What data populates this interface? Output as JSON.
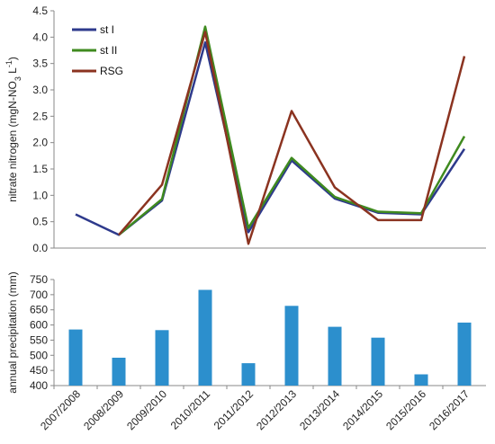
{
  "chart_data": [
    {
      "type": "line",
      "ylabel_main": "nitrate nitrogen (mgN-NO",
      "ylabel_sub": "3",
      "ylabel_unit": " L",
      "ylabel_sup": "-1",
      "ylabel_close": ")",
      "ylim": [
        0,
        4.5
      ],
      "yticks": [
        "0.0",
        "0.5",
        "1.0",
        "1.5",
        "2.0",
        "2.5",
        "3.0",
        "3.5",
        "4.0",
        "4.5"
      ],
      "categories": [
        "2007/2008",
        "2008/2009",
        "2009/2010",
        "2010/2011",
        "2011/2012",
        "2012/2013",
        "2013/2014",
        "2014/2015",
        "2015/2016",
        "2016/2017"
      ],
      "legend_position": "top-left",
      "series": [
        {
          "name": "st I",
          "color": "#2e3a8c",
          "values": [
            0.64,
            0.25,
            0.9,
            3.9,
            0.3,
            1.66,
            0.94,
            0.67,
            0.64,
            1.88
          ]
        },
        {
          "name": "st II",
          "color": "#3f8a1f",
          "values": [
            null,
            0.25,
            0.93,
            4.2,
            0.38,
            1.71,
            0.97,
            0.69,
            0.66,
            2.12
          ]
        },
        {
          "name": "RSG",
          "color": "#8b3320",
          "values": [
            null,
            0.25,
            1.2,
            4.1,
            0.08,
            2.6,
            1.15,
            0.53,
            0.53,
            3.64
          ]
        }
      ]
    },
    {
      "type": "bar",
      "ylabel": "annual precipitation (mm)",
      "ylim": [
        400,
        750
      ],
      "yticks": [
        "400",
        "450",
        "500",
        "550",
        "600",
        "650",
        "700",
        "750"
      ],
      "categories": [
        "2007/2008",
        "2008/2009",
        "2009/2010",
        "2010/2011",
        "2011/2012",
        "2012/2013",
        "2013/2014",
        "2014/2015",
        "2015/2016",
        "2016/2017"
      ],
      "bar_color": "#2c8fcd",
      "values": [
        585,
        492,
        583,
        716,
        474,
        663,
        594,
        558,
        437,
        608
      ]
    }
  ]
}
